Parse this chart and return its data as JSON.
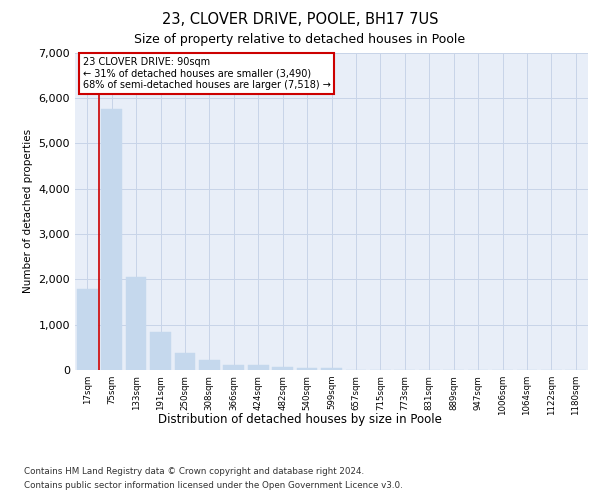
{
  "title_line1": "23, CLOVER DRIVE, POOLE, BH17 7US",
  "title_line2": "Size of property relative to detached houses in Poole",
  "xlabel": "Distribution of detached houses by size in Poole",
  "ylabel": "Number of detached properties",
  "categories": [
    "17sqm",
    "75sqm",
    "133sqm",
    "191sqm",
    "250sqm",
    "308sqm",
    "366sqm",
    "424sqm",
    "482sqm",
    "540sqm",
    "599sqm",
    "657sqm",
    "715sqm",
    "773sqm",
    "831sqm",
    "889sqm",
    "947sqm",
    "1006sqm",
    "1064sqm",
    "1122sqm",
    "1180sqm"
  ],
  "values": [
    1780,
    5750,
    2060,
    830,
    380,
    230,
    110,
    110,
    60,
    55,
    55,
    0,
    0,
    0,
    0,
    0,
    0,
    0,
    0,
    0,
    0
  ],
  "bar_color": "#c5d8ed",
  "bar_edge_color": "#c5d8ed",
  "grid_color": "#c8d4e8",
  "axes_background": "#e8eef8",
  "vline_color": "#cc0000",
  "vline_x": 0.5,
  "annotation_title": "23 CLOVER DRIVE: 90sqm",
  "annotation_line1": "← 31% of detached houses are smaller (3,490)",
  "annotation_line2": "68% of semi-detached houses are larger (7,518) →",
  "annotation_box_facecolor": "#ffffff",
  "annotation_border_color": "#cc0000",
  "ylim": [
    0,
    7000
  ],
  "yticks": [
    0,
    1000,
    2000,
    3000,
    4000,
    5000,
    6000,
    7000
  ],
  "footer_line1": "Contains HM Land Registry data © Crown copyright and database right 2024.",
  "footer_line2": "Contains public sector information licensed under the Open Government Licence v3.0."
}
